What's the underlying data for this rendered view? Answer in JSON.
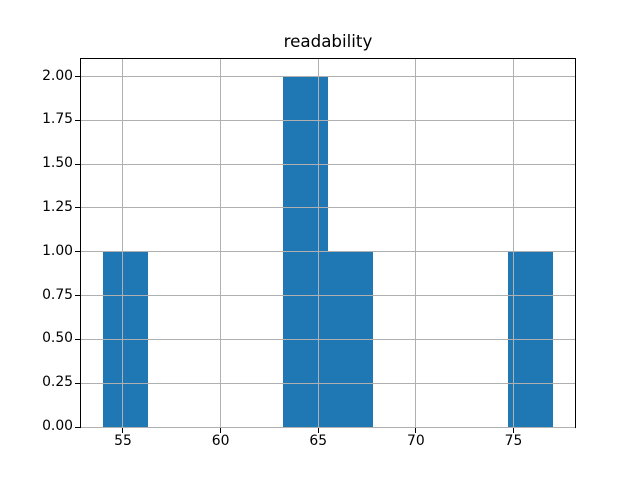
{
  "figure": {
    "background": "#ffffff"
  },
  "chart_data": {
    "type": "bar",
    "subtype": "histogram",
    "title": "readability",
    "xlabel": "",
    "ylabel": "",
    "bar_color": "#1f77b4",
    "bin_edges": [
      54.0,
      56.3,
      58.6,
      60.9,
      63.2,
      65.5,
      67.8,
      70.1,
      72.4,
      74.7,
      77.0
    ],
    "counts": [
      1,
      0,
      0,
      0,
      2,
      1,
      0,
      0,
      0,
      1
    ],
    "xlim": [
      52.85,
      78.15
    ],
    "ylim": [
      0,
      2.1
    ],
    "xticks": {
      "values": [
        55,
        60,
        65,
        70,
        75
      ],
      "labels": [
        "55",
        "60",
        "65",
        "70",
        "75"
      ]
    },
    "yticks": {
      "values": [
        0.0,
        0.25,
        0.5,
        0.75,
        1.0,
        1.25,
        1.5,
        1.75,
        2.0
      ],
      "labels": [
        "0.00",
        "0.25",
        "0.50",
        "0.75",
        "1.00",
        "1.25",
        "1.50",
        "1.75",
        "2.00"
      ]
    },
    "grid": {
      "show": true,
      "color": "#b0b0b0",
      "on_top_of_bars": true
    },
    "axes_style": {
      "spine_color": "#000000",
      "tick_color": "#000000",
      "tick_label_color": "#000000",
      "legend": "none"
    }
  }
}
